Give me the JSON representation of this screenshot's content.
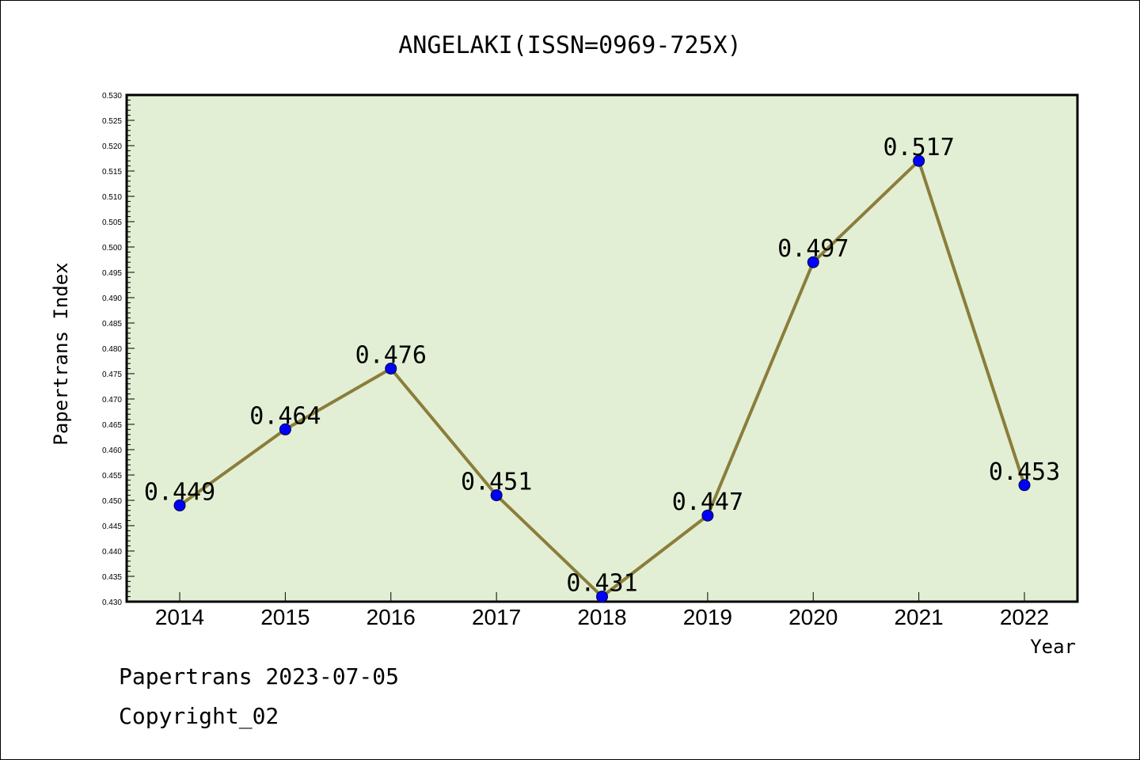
{
  "chart_data": {
    "type": "line",
    "title": "ANGELAKI(ISSN=0969-725X)",
    "xlabel": "Year",
    "ylabel": "Papertrans Index",
    "categories": [
      "2014",
      "2015",
      "2016",
      "2017",
      "2018",
      "2019",
      "2020",
      "2021",
      "2022"
    ],
    "series": [
      {
        "values": [
          0.449,
          0.464,
          0.476,
          0.451,
          0.431,
          0.447,
          0.497,
          0.517,
          0.453
        ],
        "labels": [
          "0.449",
          "0.464",
          "0.476",
          "0.451",
          "0.431",
          "0.447",
          "0.497",
          "0.517",
          "0.453"
        ]
      }
    ],
    "ylim": [
      0.43,
      0.53
    ],
    "yticks": [
      "0.430",
      "0.435",
      "0.440",
      "0.445",
      "0.450",
      "0.455",
      "0.460",
      "0.465",
      "0.470",
      "0.475",
      "0.480",
      "0.485",
      "0.490",
      "0.495",
      "0.500",
      "0.505",
      "0.510",
      "0.515",
      "0.520",
      "0.525",
      "0.530"
    ],
    "grid": false,
    "colors": {
      "plot_background": "#e2efd5",
      "line": "#8b7d3a",
      "marker": "#0000ff"
    }
  },
  "footer": {
    "line1": "Papertrans 2023-07-05",
    "line2": "Copyright_02"
  }
}
